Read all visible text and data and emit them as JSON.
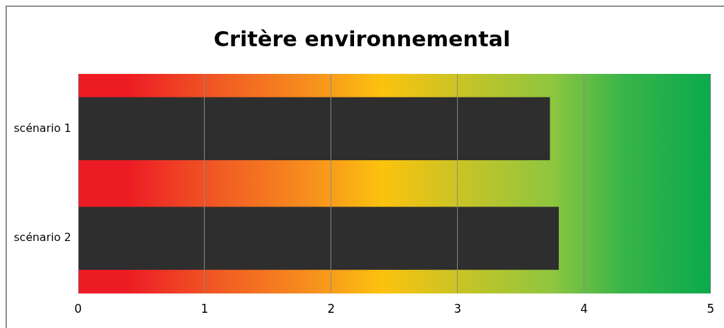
{
  "chart_data": {
    "type": "bar",
    "orientation": "horizontal",
    "title": "Critère environnemental",
    "categories": [
      "scénario 1",
      "scénario 2"
    ],
    "values": [
      3.73,
      3.8
    ],
    "color": "#2e2e2e",
    "xlim": [
      0,
      5
    ],
    "xticks": [
      0,
      1,
      2,
      3,
      4,
      5
    ],
    "grid": "x",
    "legend": false
  }
}
